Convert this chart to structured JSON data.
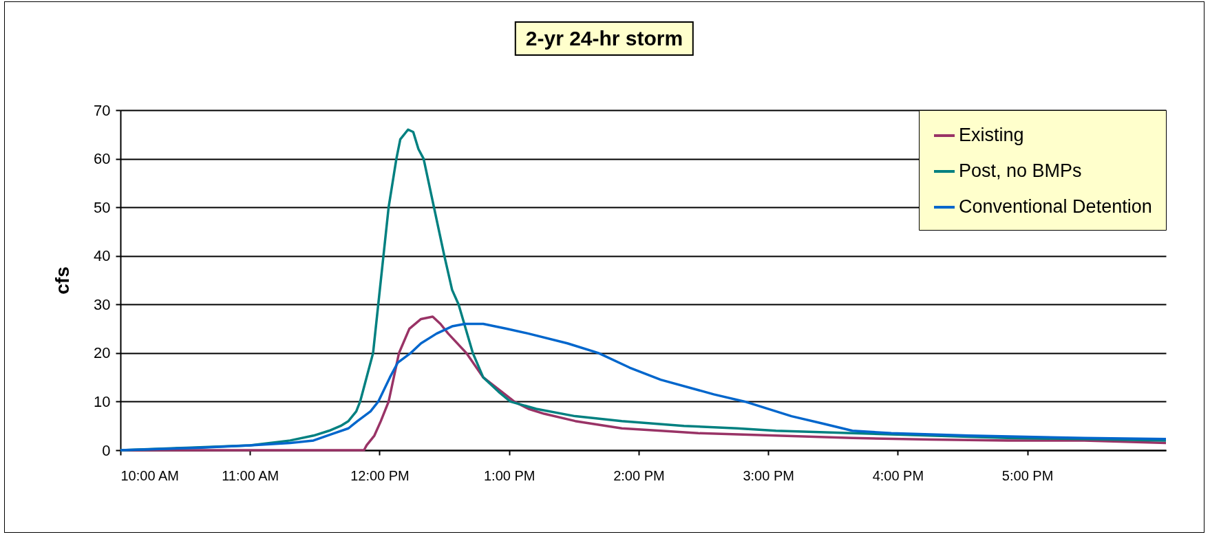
{
  "chart_data": {
    "type": "line",
    "title": "2-yr 24-hr storm",
    "ylabel": "cfs",
    "xlim": [
      10,
      18.07
    ],
    "xticks": [
      {
        "value": 10,
        "label": "10:00 AM"
      },
      {
        "value": 11,
        "label": "11:00 AM"
      },
      {
        "value": 12,
        "label": "12:00 PM"
      },
      {
        "value": 13,
        "label": "1:00 PM"
      },
      {
        "value": 14,
        "label": "2:00 PM"
      },
      {
        "value": 15,
        "label": "3:00 PM"
      },
      {
        "value": 16,
        "label": "4:00 PM"
      },
      {
        "value": 17,
        "label": "5:00 PM"
      }
    ],
    "ylim": [
      0,
      70
    ],
    "yticks": [
      0,
      10,
      20,
      30,
      40,
      50,
      60,
      70
    ],
    "grid": "y",
    "legend": "top right",
    "series": [
      {
        "name": "Existing",
        "color": "#993366",
        "x": [
          10,
          11.88,
          11.9,
          11.96,
          12.01,
          12.07,
          12.15,
          12.23,
          12.32,
          12.41,
          12.47,
          12.53,
          12.67,
          12.8,
          13.04,
          13.15,
          13.27,
          13.51,
          13.87,
          14.17,
          14.46,
          15.06,
          15.65,
          16.25,
          16.85,
          17.44,
          18.07
        ],
        "values": [
          0,
          0,
          1,
          3,
          6,
          10,
          20,
          25,
          27,
          27.5,
          26,
          24,
          20,
          15,
          10,
          8.5,
          7.5,
          6,
          4.5,
          4,
          3.5,
          3,
          2.5,
          2.2,
          2,
          2,
          1.5
        ]
      },
      {
        "name": "Post, no BMPs",
        "color": "#008080",
        "x": [
          10,
          10.51,
          11,
          11.31,
          11.49,
          11.61,
          11.7,
          11.76,
          11.82,
          11.85,
          11.89,
          11.95,
          11.99,
          12.03,
          12.07,
          12.13,
          12.16,
          12.22,
          12.26,
          12.3,
          12.34,
          12.42,
          12.5,
          12.56,
          12.61,
          12.72,
          12.8,
          12.92,
          13.01,
          13.21,
          13.51,
          13.87,
          14.35,
          14.76,
          15.06,
          15.65,
          16.25,
          16.85,
          17.44,
          18.07
        ],
        "values": [
          0,
          0.5,
          1,
          2,
          3,
          4,
          5,
          6,
          8,
          10,
          14,
          20,
          30,
          40,
          50,
          60,
          64,
          66,
          65.5,
          62,
          60,
          50,
          40,
          33,
          30,
          20,
          15,
          12,
          10,
          8.5,
          7,
          6,
          5,
          4.5,
          4,
          3.5,
          3,
          2.5,
          2.3,
          2
        ]
      },
      {
        "name": "Conventional Detention",
        "color": "#0066cc",
        "x": [
          10,
          10.6,
          11,
          11.31,
          11.49,
          11.65,
          11.76,
          11.83,
          11.93,
          11.99,
          12.08,
          12.14,
          12.24,
          12.32,
          12.44,
          12.56,
          12.66,
          12.8,
          12.98,
          13.15,
          13.45,
          13.69,
          13.93,
          14.17,
          14.58,
          14.82,
          15.18,
          15.42,
          15.65,
          15.95,
          16.55,
          17.44,
          18.07
        ],
        "values": [
          0,
          0.5,
          1,
          1.5,
          2,
          3.5,
          4.5,
          6,
          8,
          10,
          15,
          18,
          20,
          22,
          24,
          25.5,
          26,
          26,
          25,
          24,
          22,
          20,
          17,
          14.5,
          11.5,
          10,
          7,
          5.5,
          4,
          3.5,
          3,
          2.5,
          2.3
        ]
      }
    ]
  }
}
